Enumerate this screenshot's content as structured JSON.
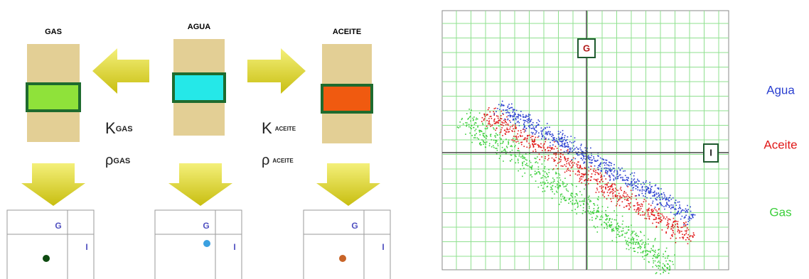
{
  "left_panel": {
    "columns": [
      {
        "label": "GAS"
      },
      {
        "label": "AGUA"
      },
      {
        "label": "ACEITE"
      }
    ],
    "properties": [
      {
        "k": "K",
        "k_sub": "GAS",
        "rho": "ρ",
        "rho_sub": "GAS"
      },
      {
        "k": "K",
        "k_sub": "ACEITE",
        "rho": "ρ",
        "rho_sub": "ACEITE"
      }
    ],
    "mini_plots": [
      {
        "y_axis": "G",
        "x_axis": "I"
      },
      {
        "y_axis": "G",
        "x_axis": "I"
      },
      {
        "y_axis": "G",
        "x_axis": "I"
      }
    ]
  },
  "right_panel": {
    "y_axis": "G",
    "x_axis": "I",
    "legend": [
      {
        "name": "Agua",
        "color": "#2a3fd0"
      },
      {
        "name": "Aceite",
        "color": "#e01818"
      },
      {
        "name": "Gas",
        "color": "#3ccf3c"
      }
    ]
  }
}
